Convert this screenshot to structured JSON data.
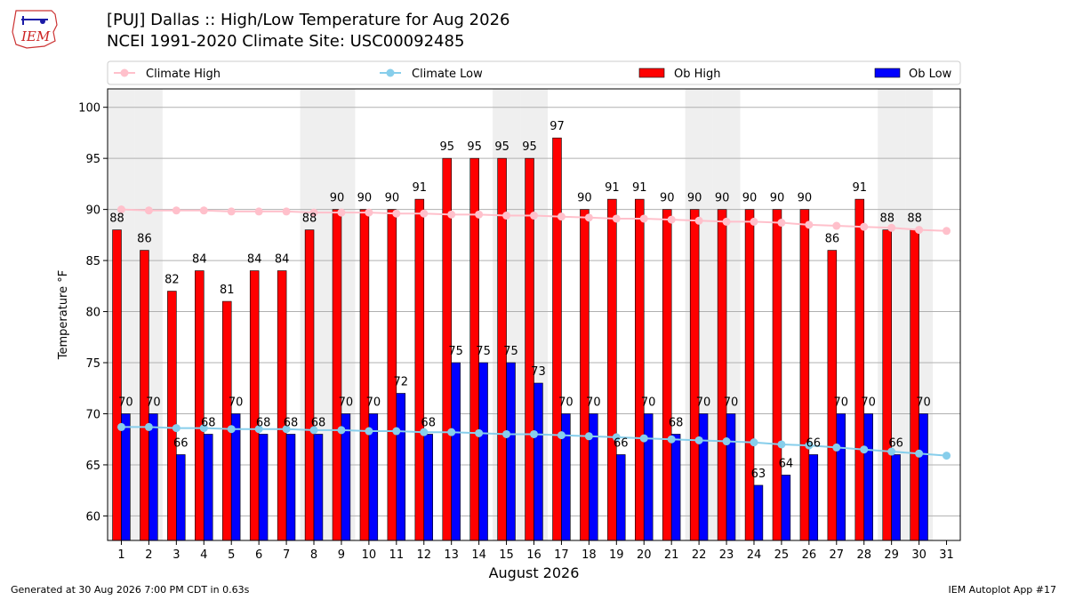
{
  "header": {
    "title": "[PUJ] Dallas :: High/Low Temperature for Aug 2026",
    "subtitle": "NCEI 1991-2020 Climate Site: USC00092485",
    "logo_text": "IEM"
  },
  "footer": {
    "generated": "Generated at 30 Aug 2026 7:00 PM CDT in 0.63s",
    "app": "IEM Autoplot App #17"
  },
  "colors": {
    "ob_high": "#ff0000",
    "ob_low": "#0000ff",
    "climate_high": "#ffc0cb",
    "climate_low": "#87ceeb",
    "weekend_band": "#efefef",
    "grid": "#b0b0b0"
  },
  "chart_data": {
    "type": "bar",
    "xlabel": "August 2026",
    "ylabel": "Temperature °F",
    "ylim": [
      57.6,
      101.8
    ],
    "yticks": [
      60,
      65,
      70,
      75,
      80,
      85,
      90,
      95,
      100
    ],
    "grid": "horizontal",
    "legend_placement": "top",
    "categories": [
      "1",
      "2",
      "3",
      "4",
      "5",
      "6",
      "7",
      "8",
      "9",
      "10",
      "11",
      "12",
      "13",
      "14",
      "15",
      "16",
      "17",
      "18",
      "19",
      "20",
      "21",
      "22",
      "23",
      "24",
      "25",
      "26",
      "27",
      "28",
      "29",
      "30",
      "31"
    ],
    "shaded_days": [
      1,
      2,
      8,
      9,
      15,
      16,
      22,
      23,
      29,
      30
    ],
    "series": [
      {
        "name": "Climate High",
        "kind": "line",
        "values": [
          90.0,
          89.9,
          89.9,
          89.9,
          89.8,
          89.8,
          89.8,
          89.7,
          89.7,
          89.7,
          89.6,
          89.6,
          89.5,
          89.5,
          89.4,
          89.4,
          89.3,
          89.2,
          89.1,
          89.1,
          89.0,
          88.9,
          88.8,
          88.8,
          88.7,
          88.5,
          88.4,
          88.3,
          88.2,
          88.0,
          87.9
        ]
      },
      {
        "name": "Climate Low",
        "kind": "line",
        "values": [
          68.7,
          68.7,
          68.6,
          68.6,
          68.5,
          68.5,
          68.5,
          68.4,
          68.4,
          68.3,
          68.3,
          68.2,
          68.2,
          68.1,
          68.0,
          68.0,
          67.9,
          67.8,
          67.7,
          67.6,
          67.5,
          67.4,
          67.3,
          67.2,
          67.0,
          66.9,
          66.7,
          66.5,
          66.3,
          66.1,
          65.9
        ]
      },
      {
        "name": "Ob High",
        "kind": "bar",
        "values": [
          88,
          86,
          82,
          84,
          81,
          84,
          84,
          88,
          90,
          90,
          90,
          91,
          95,
          95,
          95,
          95,
          97,
          90,
          91,
          91,
          90,
          90,
          90,
          90,
          90,
          90,
          86,
          91,
          88,
          88,
          null
        ],
        "labels": [
          "88",
          "86",
          "82",
          "84",
          "81",
          "84",
          "84",
          "88",
          "90",
          "90",
          "90",
          "91",
          "95",
          "95",
          "95",
          "95",
          "97",
          "90",
          "91",
          "91",
          "90",
          "90",
          "90",
          "90",
          "90",
          "90",
          "86",
          "91",
          "88",
          "88",
          ""
        ]
      },
      {
        "name": "Ob Low",
        "kind": "bar",
        "values": [
          70,
          70,
          66,
          68,
          70,
          68,
          68,
          68,
          70,
          70,
          72,
          68,
          75,
          75,
          75,
          73,
          70,
          70,
          66,
          70,
          68,
          70,
          70,
          63,
          64,
          66,
          70,
          70,
          66,
          70,
          null
        ],
        "labels": [
          "70",
          "70",
          "66",
          "68",
          "70",
          "68",
          "68",
          "68",
          "70",
          "70",
          "72",
          "68",
          "75",
          "75",
          "75",
          "73",
          "70",
          "70",
          "66",
          "70",
          "68",
          "70",
          "70",
          "63",
          "64",
          "66",
          "70",
          "70",
          "66",
          "70",
          ""
        ]
      }
    ]
  }
}
